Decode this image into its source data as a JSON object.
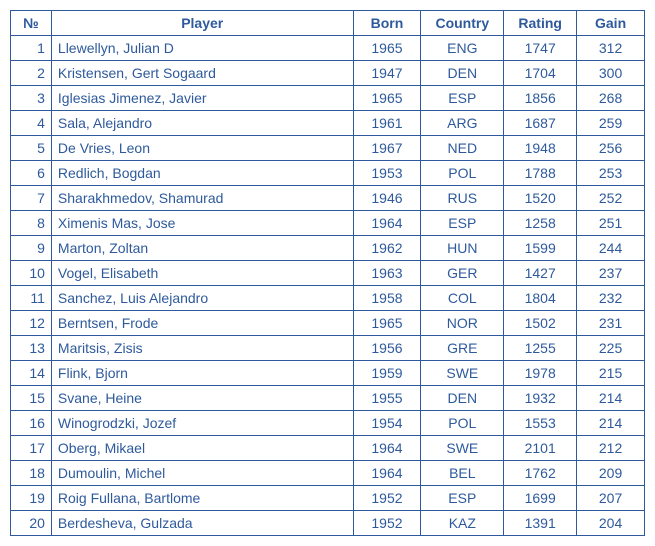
{
  "table": {
    "columns": [
      "№",
      "Player",
      "Born",
      "Country",
      "Rating",
      "Gain"
    ],
    "rows": [
      {
        "n": "1",
        "player": "Llewellyn, Julian D",
        "born": "1965",
        "country": "ENG",
        "rating": "1747",
        "gain": "312"
      },
      {
        "n": "2",
        "player": "Kristensen, Gert Sogaard",
        "born": "1947",
        "country": "DEN",
        "rating": "1704",
        "gain": "300"
      },
      {
        "n": "3",
        "player": "Iglesias Jimenez, Javier",
        "born": "1965",
        "country": "ESP",
        "rating": "1856",
        "gain": "268"
      },
      {
        "n": "4",
        "player": "Sala, Alejandro",
        "born": "1961",
        "country": "ARG",
        "rating": "1687",
        "gain": "259"
      },
      {
        "n": "5",
        "player": "De Vries, Leon",
        "born": "1967",
        "country": "NED",
        "rating": "1948",
        "gain": "256"
      },
      {
        "n": "6",
        "player": "Redlich, Bogdan",
        "born": "1953",
        "country": "POL",
        "rating": "1788",
        "gain": "253"
      },
      {
        "n": "7",
        "player": "Sharakhmedov, Shamurad",
        "born": "1946",
        "country": "RUS",
        "rating": "1520",
        "gain": "252"
      },
      {
        "n": "8",
        "player": "Ximenis Mas, Jose",
        "born": "1964",
        "country": "ESP",
        "rating": "1258",
        "gain": "251"
      },
      {
        "n": "9",
        "player": "Marton, Zoltan",
        "born": "1962",
        "country": "HUN",
        "rating": "1599",
        "gain": "244"
      },
      {
        "n": "10",
        "player": "Vogel, Elisabeth",
        "born": "1963",
        "country": "GER",
        "rating": "1427",
        "gain": "237"
      },
      {
        "n": "11",
        "player": "Sanchez, Luis Alejandro",
        "born": "1958",
        "country": "COL",
        "rating": "1804",
        "gain": "232"
      },
      {
        "n": "12",
        "player": "Berntsen, Frode",
        "born": "1965",
        "country": "NOR",
        "rating": "1502",
        "gain": "231"
      },
      {
        "n": "13",
        "player": "Maritsis, Zisis",
        "born": "1956",
        "country": "GRE",
        "rating": "1255",
        "gain": "225"
      },
      {
        "n": "14",
        "player": "Flink, Bjorn",
        "born": "1959",
        "country": "SWE",
        "rating": "1978",
        "gain": "215"
      },
      {
        "n": "15",
        "player": "Svane, Heine",
        "born": "1955",
        "country": "DEN",
        "rating": "1932",
        "gain": "214"
      },
      {
        "n": "16",
        "player": "Winogrodzki, Jozef",
        "born": "1954",
        "country": "POL",
        "rating": "1553",
        "gain": "214"
      },
      {
        "n": "17",
        "player": "Oberg, Mikael",
        "born": "1964",
        "country": "SWE",
        "rating": "2101",
        "gain": "212"
      },
      {
        "n": "18",
        "player": "Dumoulin, Michel",
        "born": "1964",
        "country": "BEL",
        "rating": "1762",
        "gain": "209"
      },
      {
        "n": "19",
        "player": "Roig Fullana, Bartlome",
        "born": "1952",
        "country": "ESP",
        "rating": "1699",
        "gain": "207"
      },
      {
        "n": "20",
        "player": "Berdesheva, Gulzada",
        "born": "1952",
        "country": "KAZ",
        "rating": "1391",
        "gain": "204"
      }
    ],
    "border_color": "#2e5a9c",
    "text_color": "#2e5a9c",
    "font_size": 14
  }
}
